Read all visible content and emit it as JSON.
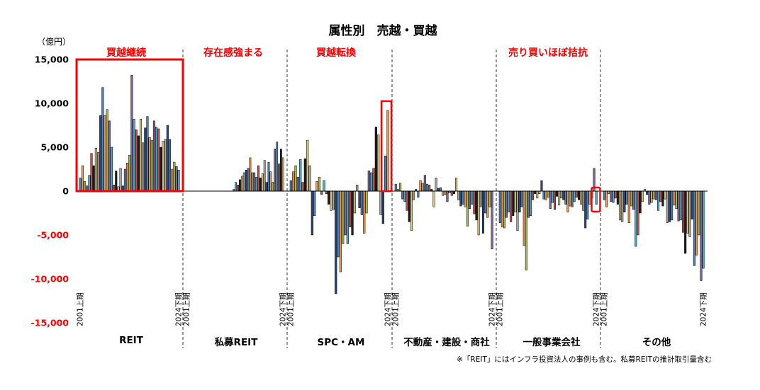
{
  "chart_data": {
    "type": "bar",
    "title": "属性別　売越・買越",
    "unit_label": "（億円）",
    "ylim": [
      -15000,
      15000
    ],
    "y_ticks": [
      {
        "value": 15000,
        "label": "15,000",
        "color": "#000000"
      },
      {
        "value": 10000,
        "label": "10,000",
        "color": "#000000"
      },
      {
        "value": 5000,
        "label": "5,000",
        "color": "#000000"
      },
      {
        "value": 0,
        "label": "0",
        "color": "#000000"
      },
      {
        "value": -5000,
        "label": "-5,000",
        "color": "#ff0000"
      },
      {
        "value": -10000,
        "label": "-10,000",
        "color": "#ff0000"
      },
      {
        "value": -15000,
        "label": "-15,000",
        "color": "#ff0000"
      }
    ],
    "grid": false,
    "bar_colors": [
      "#4f81bd",
      "#f79646",
      "#9bbb59",
      "#8064a2",
      "#4bacc6",
      "#c0504d",
      "#1f1f1f",
      "#d9c27a",
      "#a6a6a6",
      "#2e4a7a"
    ],
    "period_start_label": "2001上期",
    "period_end_label": "2024下期",
    "groups": [
      {
        "name": "REIT",
        "annotation": "買越継続",
        "values": [
          1500,
          2900,
          1100,
          600,
          1800,
          4300,
          2900,
          4900,
          4400,
          8600,
          11800,
          8600,
          9300,
          8000,
          5000,
          700,
          2300,
          500,
          2600,
          600,
          2500,
          3200,
          4100,
          13200,
          8200,
          7000,
          6300,
          8200,
          5500,
          7200,
          8500,
          6100,
          5800,
          8000,
          7300,
          7100,
          5000,
          5700,
          5900,
          7500,
          5900,
          2500,
          3300,
          2800,
          2400
        ]
      },
      {
        "name": "私募REIT",
        "annotation": "存在感強まる",
        "values": [
          0,
          0,
          0,
          0,
          0,
          0,
          0,
          0,
          0,
          0,
          0,
          0,
          0,
          0,
          0,
          0,
          0,
          0,
          0,
          0,
          0,
          0,
          0,
          200,
          1000,
          700,
          1300,
          1700,
          2100,
          2400,
          2600,
          3800,
          2100,
          2100,
          1600,
          2900,
          1500,
          2000,
          3500,
          1000,
          3300,
          2200,
          1000,
          4800,
          5600,
          3100,
          4800,
          3800
        ]
      },
      {
        "name": "SPC・AM",
        "annotation": "買越転換",
        "values": [
          1200,
          2200,
          2900,
          1600,
          3600,
          1000,
          3700,
          5800,
          2900,
          -5000,
          -2800,
          1100,
          1600,
          -400,
          1200,
          -300,
          -1500,
          -2200,
          -2100,
          -11700,
          -7500,
          -9200,
          -6000,
          -5000,
          -6000,
          -4100,
          -5000,
          -2500,
          700,
          -1900,
          -2700,
          -4800,
          -2500,
          2300,
          2100,
          2600,
          7300,
          6400,
          -2700,
          -3700,
          4000,
          9200
        ]
      },
      {
        "name": "不動産・建設・商社",
        "annotation": "",
        "values": [
          800,
          200,
          900,
          -900,
          -1200,
          -2200,
          -3500,
          -4500,
          -1000,
          200,
          -700,
          1200,
          900,
          1800,
          800,
          700,
          200,
          -1800,
          1500,
          300,
          400,
          -500,
          -400,
          -1200,
          -200,
          -500,
          -300,
          1500,
          -1000,
          -1700,
          -1500,
          -1800,
          -4000,
          -2000,
          -1500,
          -2600,
          -3300,
          -5000,
          -1800,
          -4800,
          -2500,
          -3000,
          -1800,
          -6600
        ]
      },
      {
        "name": "一般事業会社",
        "annotation": "売り買いほぼ拮抗",
        "values": [
          -3600,
          -4100,
          -4200,
          -3000,
          -2400,
          -3500,
          -2800,
          -2400,
          -4500,
          -2400,
          -1800,
          -6200,
          -9000,
          -3000,
          -2800,
          -1000,
          -300,
          -800,
          -300,
          1200,
          -900,
          -1000,
          -700,
          -2000,
          -1300,
          -2100,
          -600,
          -1600,
          -800,
          -1000,
          -1500,
          -2400,
          -1700,
          -1800,
          -1200,
          -700,
          -1000,
          -1500,
          -2200,
          -4200,
          -3200,
          -1500,
          -800,
          2600,
          -1500
        ]
      },
      {
        "name": "その他",
        "annotation": "",
        "values": [
          -1000,
          -1800,
          -300,
          -1200,
          -1300,
          -800,
          -1500,
          -3300,
          -3500,
          -2400,
          -1500,
          -3600,
          -1700,
          -2100,
          -6300,
          -5000,
          -2500,
          -1200,
          200,
          -400,
          -1500,
          -1300,
          -900,
          -1000,
          -2200,
          -1200,
          -1700,
          -900,
          -3600,
          -3500,
          -3300,
          -1600,
          -2000,
          -3400,
          -3300,
          -4700,
          -7100,
          -4800,
          -5200,
          -3200,
          -8500,
          -7300,
          -5000,
          -10200,
          -8800
        ]
      }
    ],
    "footnote": "※「REIT」にはインフラ投資法人の事例も含む。私募REITの推計取引量含む"
  }
}
